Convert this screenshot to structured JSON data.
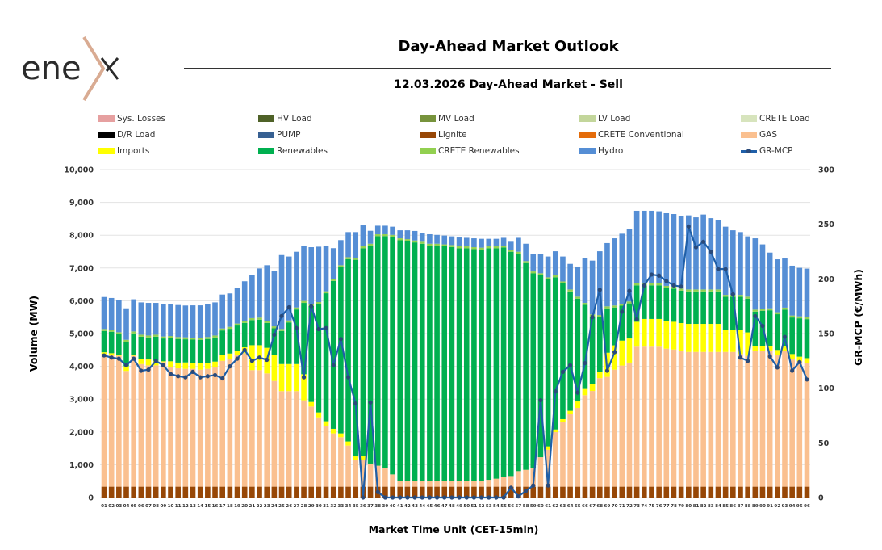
{
  "logo": {
    "text": "enex",
    "colors": {
      "letters": "#2b2b2b",
      "chevron": "#d9ab92"
    }
  },
  "header": {
    "title": "Day-Ahead Market Outlook",
    "subtitle": "12.03.2026  Day-Ahead Market - Sell"
  },
  "chart_data": {
    "type": "bar",
    "stacked": true,
    "xlabel": "Market Time Unit (CET-15min)",
    "ylabel": "Volume (MW)",
    "y2label": "GR-MCP (€/MWh)",
    "ylim": [
      0,
      10000
    ],
    "y2lim": [
      0,
      300
    ],
    "yticks": [
      "0",
      "1,000",
      "2,000",
      "3,000",
      "4,000",
      "5,000",
      "6,000",
      "7,000",
      "8,000",
      "9,000",
      "10,000"
    ],
    "y2ticks": [
      "0",
      "50",
      "100",
      "150",
      "200",
      "250",
      "300"
    ],
    "grid": true,
    "legend_placement": "top",
    "legend": [
      {
        "name": "Sys. Losses",
        "color": "#e6a0a0"
      },
      {
        "name": "HV Load",
        "color": "#4f6228"
      },
      {
        "name": "MV Load",
        "color": "#77933c"
      },
      {
        "name": "LV Load",
        "color": "#c3d69b"
      },
      {
        "name": "CRETE Load",
        "color": "#d7e4bd"
      },
      {
        "name": "D/R Load",
        "color": "#000000"
      },
      {
        "name": "PUMP",
        "color": "#376092"
      },
      {
        "name": "Lignite",
        "color": "#974706"
      },
      {
        "name": "CRETE Conventional",
        "color": "#e46c0a"
      },
      {
        "name": "GAS",
        "color": "#fac090"
      },
      {
        "name": "Imports",
        "color": "#ffff00"
      },
      {
        "name": "Renewables",
        "color": "#00b050"
      },
      {
        "name": "CRETE Renewables",
        "color": "#92d050"
      },
      {
        "name": "Hydro",
        "color": "#558ed5"
      },
      {
        "name": "GR-MCP",
        "color": "#1f5fa8",
        "line": true
      }
    ],
    "categories": [
      "01",
      "02",
      "03",
      "04",
      "05",
      "06",
      "07",
      "08",
      "09",
      "10",
      "11",
      "12",
      "13",
      "14",
      "15",
      "16",
      "17",
      "18",
      "19",
      "20",
      "21",
      "22",
      "23",
      "24",
      "25",
      "26",
      "27",
      "28",
      "29",
      "30",
      "31",
      "32",
      "33",
      "34",
      "35",
      "36",
      "37",
      "38",
      "39",
      "40",
      "41",
      "42",
      "43",
      "44",
      "45",
      "46",
      "47",
      "48",
      "49",
      "50",
      "51",
      "52",
      "53",
      "54",
      "55",
      "56",
      "57",
      "58",
      "59",
      "60",
      "61",
      "62",
      "63",
      "64",
      "65",
      "66",
      "67",
      "68",
      "69",
      "70",
      "71",
      "72",
      "73",
      "74",
      "75",
      "76",
      "77",
      "78",
      "79",
      "80",
      "81",
      "82",
      "83",
      "84",
      "85",
      "86",
      "87",
      "88",
      "89",
      "90",
      "91",
      "92",
      "93",
      "94",
      "95",
      "96"
    ],
    "series": [
      {
        "name": "Lignite",
        "color": "#974706",
        "values": [
          330,
          330,
          330,
          330,
          330,
          330,
          330,
          330,
          330,
          330,
          330,
          330,
          330,
          330,
          330,
          330,
          330,
          330,
          330,
          330,
          330,
          330,
          330,
          330,
          330,
          330,
          330,
          330,
          330,
          330,
          330,
          330,
          330,
          330,
          330,
          330,
          330,
          330,
          330,
          330,
          330,
          330,
          330,
          330,
          330,
          330,
          330,
          330,
          330,
          330,
          330,
          330,
          330,
          330,
          330,
          330,
          330,
          330,
          330,
          330,
          330,
          330,
          330,
          330,
          330,
          330,
          330,
          330,
          330,
          330,
          330,
          330,
          330,
          330,
          330,
          330,
          330,
          330,
          330,
          330,
          330,
          330,
          330,
          330,
          330,
          330,
          330,
          330,
          330,
          330,
          330,
          330,
          330,
          330,
          330,
          330
        ]
      },
      {
        "name": "GAS",
        "color": "#fac090",
        "values": [
          4045,
          4020,
          3990,
          3530,
          3990,
          3740,
          3700,
          3700,
          3800,
          3635,
          3610,
          3595,
          3595,
          3570,
          3595,
          3635,
          3840,
          3880,
          4005,
          4070,
          3555,
          3555,
          3455,
          3225,
          2915,
          2915,
          2915,
          2635,
          2445,
          2115,
          1845,
          1625,
          1510,
          1255,
          805,
          805,
          680,
          640,
          575,
          375,
          185,
          185,
          185,
          185,
          185,
          185,
          185,
          185,
          185,
          185,
          185,
          185,
          210,
          245,
          295,
          325,
          475,
          515,
          575,
          900,
          1130,
          1665,
          1970,
          2215,
          2405,
          2790,
          2920,
          3310,
          3350,
          3570,
          3695,
          3785,
          4270,
          4270,
          4270,
          4270,
          4210,
          4185,
          4130,
          4110,
          4110,
          4110,
          4110,
          4110,
          4110,
          4110,
          4045,
          3990,
          4130,
          4130,
          4130,
          4005,
          4130,
          3880,
          3825,
          3760
        ]
      },
      {
        "name": "Imports",
        "color": "#ffff00",
        "values": [
          55,
          50,
          30,
          145,
          30,
          165,
          180,
          140,
          25,
          190,
          175,
          195,
          180,
          190,
          180,
          180,
          180,
          180,
          140,
          180,
          760,
          760,
          780,
          795,
          825,
          825,
          825,
          795,
          140,
          150,
          150,
          140,
          115,
          125,
          120,
          120,
          25,
          0,
          0,
          0,
          0,
          0,
          0,
          0,
          0,
          0,
          0,
          0,
          0,
          0,
          0,
          0,
          0,
          0,
          0,
          0,
          0,
          0,
          0,
          0,
          100,
          80,
          90,
          100,
          195,
          190,
          200,
          200,
          735,
          740,
          760,
          735,
          760,
          845,
          845,
          845,
          845,
          845,
          860,
          855,
          855,
          855,
          855,
          855,
          675,
          675,
          725,
          715,
          160,
          160,
          160,
          165,
          160,
          165,
          140,
          160
        ]
      },
      {
        "name": "Renewables",
        "color": "#00b050",
        "values": [
          650,
          655,
          630,
          745,
          655,
          670,
          670,
          735,
          695,
          710,
          720,
          705,
          710,
          720,
          730,
          735,
          745,
          755,
          770,
          745,
          765,
          780,
          760,
          810,
          1010,
          1270,
          1665,
          2175,
          2925,
          3305,
          3905,
          4510,
          5070,
          5560,
          5995,
          6345,
          6645,
          7000,
          7065,
          7245,
          7330,
          7305,
          7265,
          7225,
          7165,
          7165,
          7145,
          7125,
          7085,
          7085,
          7060,
          7045,
          7060,
          7025,
          7000,
          6840,
          6630,
          6305,
          5930,
          5550,
          5095,
          4640,
          4140,
          3640,
          3135,
          2565,
          2075,
          1665,
          1355,
          1155,
          1065,
          1070,
          1110,
          1025,
          1025,
          1025,
          1010,
          1010,
          990,
          990,
          990,
          990,
          990,
          990,
          1005,
          1005,
          1020,
          1030,
          1050,
          1075,
          1090,
          1090,
          1110,
          1115,
          1170,
          1190
        ]
      },
      {
        "name": "CRETE Renewables",
        "color": "#92d050",
        "values": [
          60,
          60,
          60,
          60,
          60,
          60,
          60,
          60,
          60,
          60,
          60,
          60,
          60,
          60,
          60,
          60,
          60,
          60,
          60,
          60,
          60,
          60,
          60,
          60,
          60,
          60,
          60,
          60,
          60,
          60,
          60,
          60,
          60,
          60,
          60,
          60,
          60,
          60,
          60,
          60,
          60,
          60,
          60,
          60,
          60,
          60,
          60,
          60,
          60,
          60,
          60,
          60,
          60,
          60,
          60,
          60,
          60,
          60,
          60,
          60,
          60,
          60,
          60,
          60,
          60,
          60,
          60,
          60,
          60,
          60,
          60,
          60,
          60,
          60,
          60,
          60,
          60,
          60,
          60,
          60,
          60,
          60,
          60,
          60,
          60,
          60,
          60,
          60,
          60,
          60,
          60,
          60,
          60,
          60,
          60,
          60
        ]
      },
      {
        "name": "Hydro",
        "color": "#558ed5",
        "values": [
          975,
          970,
          980,
          960,
          980,
          985,
          995,
          970,
          985,
          980,
          975,
          970,
          985,
          990,
          1010,
          1010,
          1035,
          1020,
          1080,
          1210,
          1310,
          1500,
          1700,
          1700,
          2255,
          1950,
          1700,
          1690,
          1735,
          1690,
          1395,
          940,
          765,
          765,
          785,
          640,
          395,
          260,
          260,
          250,
          245,
          270,
          290,
          270,
          290,
          270,
          270,
          265,
          270,
          260,
          270,
          270,
          230,
          230,
          235,
          245,
          425,
          530,
          535,
          590,
          635,
          735,
          760,
          780,
          920,
          1370,
          1640,
          1945,
          1930,
          2050,
          2135,
          2215,
          2215,
          2215,
          2215,
          2200,
          2215,
          2215,
          2220,
          2260,
          2200,
          2285,
          2175,
          2110,
          2080,
          1970,
          1915,
          1840,
          2175,
          1965,
          1700,
          1615,
          1500,
          1520,
          1480,
          1480
        ]
      }
    ],
    "line": {
      "name": "GR-MCP",
      "color": "#1f5fa8",
      "axis": "right",
      "values": [
        130,
        128,
        127,
        121,
        127,
        116,
        117,
        125,
        121,
        113,
        111,
        110,
        115,
        110,
        111,
        112,
        109,
        120,
        127,
        135,
        125,
        128,
        126,
        149,
        166,
        174,
        155,
        110,
        175,
        154,
        155,
        121,
        145,
        110,
        86,
        0,
        87,
        5,
        0,
        0,
        0,
        0,
        0,
        0,
        0,
        0,
        0,
        0,
        0,
        0,
        0,
        0,
        0,
        0,
        0,
        9,
        1,
        6,
        11,
        89,
        11,
        97,
        115,
        121,
        96,
        123,
        165,
        190,
        116,
        133,
        170,
        189,
        163,
        194,
        204,
        203,
        198,
        194,
        193,
        248,
        229,
        234,
        225,
        209,
        209,
        186,
        128,
        125,
        166,
        157,
        129,
        119,
        147,
        116,
        124,
        108
      ]
    }
  }
}
